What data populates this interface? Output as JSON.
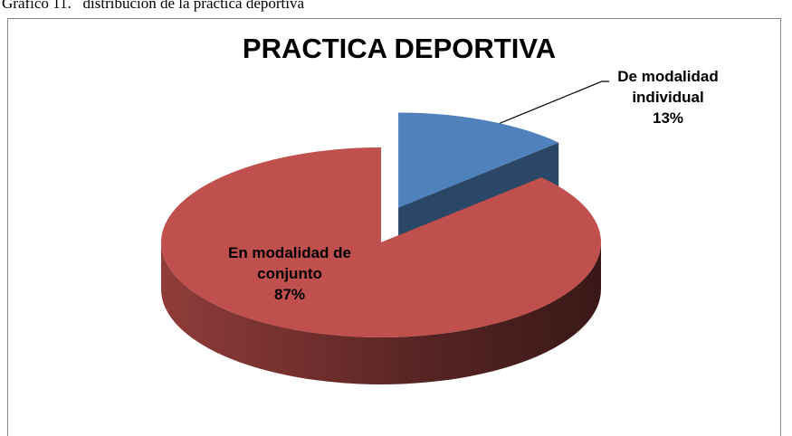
{
  "caption": "Gráfico 11.   distribución de la práctica deportiva",
  "chart_data": {
    "type": "pie",
    "title": "PRACTICA DEPORTIVA",
    "categories": [
      "De modalidad individual",
      "En modalidad de conjunto"
    ],
    "values": [
      13,
      87
    ],
    "value_labels": [
      "13%",
      "87%"
    ],
    "colors": [
      "#4f81bd",
      "#c0504d"
    ]
  }
}
